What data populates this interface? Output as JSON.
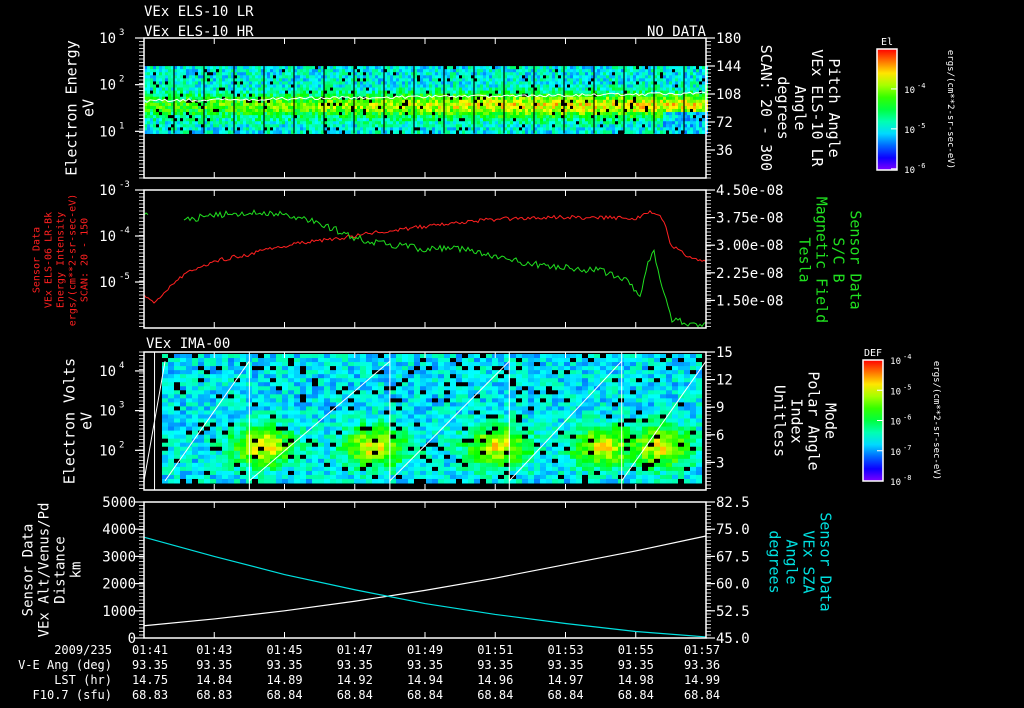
{
  "titles": {
    "top1": "VEx ELS-10 LR",
    "top2": "VEx ELS-10 HR",
    "no_data": "NO DATA",
    "ima": "VEx IMA-00"
  },
  "colors": {
    "red": "#ff2020",
    "green": "#20e020",
    "cyan": "#00e0e0",
    "white": "#ffffff"
  },
  "chart_data": [
    {
      "type": "heatmap",
      "title": "VEx ELS-10 LR / VEx ELS-10 HR",
      "ylabel": [
        "Electron Energy",
        "eV"
      ],
      "yscale": "log",
      "ylim": [
        1,
        1000
      ],
      "yticks": [
        "10^3",
        "10^2",
        "10^1"
      ],
      "y2label": [
        "Pitch Angle",
        "VEx ELS-10 LR",
        "Angle",
        "degrees",
        "SCAN: 20 - 300"
      ],
      "y2ticks": [
        "180",
        "144",
        "108",
        "72",
        "36"
      ],
      "y2lim": [
        0,
        180
      ],
      "colorbar": {
        "title": "El",
        "ticks": [
          "10^-4",
          "10^-5",
          "10^-6"
        ],
        "label": "ergs/(cm**2-sr-sec-eV)"
      },
      "band_eV": [
        10,
        250
      ],
      "peak_eV": 40
    },
    {
      "type": "line",
      "ylabel": [
        "Sensor Data",
        "VEx ELS-06 LR-Bk",
        "Energy Intensity",
        "ergs/(cm**2-sr-sec-eV)",
        "SCAN: 20 - 150"
      ],
      "yscale": "log",
      "ylim": [
        1e-06,
        0.001
      ],
      "yticks": [
        "10^-3",
        "10^-4",
        "10^-5"
      ],
      "y2label": [
        "Sensor Data",
        "S/C B",
        "Magnetic Field",
        "Tesla"
      ],
      "y2ticks": [
        "4.50e-08",
        "3.75e-08",
        "3.00e-08",
        "2.25e-08",
        "1.50e-08"
      ],
      "y2lim": [
        7.5e-09,
        4.5e-08
      ],
      "series": [
        {
          "name": "Energy Intensity",
          "axis": "left",
          "color": "red",
          "x": [
            0,
            0.3,
            0.6,
            1,
            1.5,
            2,
            3,
            4,
            5,
            6,
            7,
            8,
            9,
            10,
            11,
            12,
            13,
            14,
            14.5,
            14.7,
            15,
            15.5,
            16
          ],
          "y": [
            5e-06,
            3.5e-06,
            6e-06,
            1.2e-05,
            2e-05,
            2.8e-05,
            4e-05,
            6e-05,
            8e-05,
            0.0001,
            0.00013,
            0.00016,
            0.0002,
            0.00023,
            0.00025,
            0.00026,
            0.00025,
            0.00024,
            0.00035,
            0.00025,
            6e-05,
            3.5e-05,
            2.8e-05
          ]
        },
        {
          "name": "S/C B Magnetic Field",
          "axis": "right",
          "color": "green",
          "x": [
            0,
            0.1,
            1.1,
            2,
            3,
            4,
            5,
            6,
            7,
            8,
            9,
            10,
            11,
            12,
            13,
            13.8,
            14.1,
            14.5,
            14.7,
            15,
            15.5,
            16
          ],
          "y": [
            3.9e-08,
            3.85e-08,
            3.7e-08,
            3.8e-08,
            3.9e-08,
            3.85e-08,
            3.6e-08,
            3.2e-08,
            3e-08,
            2.9e-08,
            2.9e-08,
            2.7e-08,
            2.5e-08,
            2.4e-08,
            2.3e-08,
            2e-08,
            1.6e-08,
            3e-08,
            2e-08,
            1e-08,
            8.5e-09,
            8.5e-09
          ]
        }
      ]
    },
    {
      "type": "heatmap",
      "title": "VEx IMA-00",
      "ylabel": [
        "Electron Volts",
        "eV"
      ],
      "yscale": "log",
      "ylim": [
        10,
        30000
      ],
      "yticks": [
        "10^4",
        "10^3",
        "10^2"
      ],
      "y2label": [
        "Mode",
        "Polar Angle",
        "Index",
        "Unitless"
      ],
      "y2ticks": [
        "15",
        "12",
        "9",
        "6",
        "3"
      ],
      "y2lim": [
        0,
        15
      ],
      "colorbar": {
        "title": "DEF",
        "ticks": [
          "10^-4",
          "10^-5",
          "10^-6",
          "10^-7",
          "10^-8"
        ],
        "label": "ergs/(cm**2-sr-sec-eV)"
      }
    },
    {
      "type": "line",
      "ylabel": [
        "Sensor Data",
        "VEx Alt/Venus/Pd",
        "Distance",
        "km"
      ],
      "ylim": [
        0,
        5000
      ],
      "yticks": [
        "5000",
        "4000",
        "3000",
        "2000",
        "1000",
        "0"
      ],
      "y2label": [
        "Sensor Data",
        "VEx SZA",
        "Angle",
        "degrees"
      ],
      "y2lim": [
        45,
        82.5
      ],
      "y2ticks": [
        "82.5",
        "75.0",
        "67.5",
        "60.0",
        "52.5",
        "45.0"
      ],
      "series": [
        {
          "name": "Altitude",
          "axis": "left",
          "color": "white",
          "x": [
            0,
            2,
            4,
            6,
            8,
            10,
            12,
            14,
            16
          ],
          "y": [
            450,
            700,
            1000,
            1350,
            1750,
            2200,
            2700,
            3200,
            3750
          ]
        },
        {
          "name": "SZA",
          "axis": "right",
          "color": "cyan",
          "x": [
            0,
            2,
            4,
            6,
            8,
            10,
            12,
            14,
            16
          ],
          "y": [
            72.8,
            67.5,
            62.5,
            58.3,
            54.5,
            51.5,
            49.0,
            46.8,
            45.3
          ]
        }
      ]
    }
  ],
  "time_axis": {
    "row_labels": [
      "2009/235",
      "V-E Ang (deg)",
      "LST (hr)",
      "F10.7 (sfu)"
    ],
    "columns": [
      {
        "time": "01:41",
        "ve": "93.35",
        "lst": "14.75",
        "f107": "68.83"
      },
      {
        "time": "01:43",
        "ve": "93.35",
        "lst": "14.84",
        "f107": "68.83"
      },
      {
        "time": "01:45",
        "ve": "93.35",
        "lst": "14.89",
        "f107": "68.84"
      },
      {
        "time": "01:47",
        "ve": "93.35",
        "lst": "14.92",
        "f107": "68.84"
      },
      {
        "time": "01:49",
        "ve": "93.35",
        "lst": "14.94",
        "f107": "68.84"
      },
      {
        "time": "01:51",
        "ve": "93.35",
        "lst": "14.96",
        "f107": "68.84"
      },
      {
        "time": "01:53",
        "ve": "93.35",
        "lst": "14.97",
        "f107": "68.84"
      },
      {
        "time": "01:55",
        "ve": "93.35",
        "lst": "14.98",
        "f107": "68.84"
      },
      {
        "time": "01:57",
        "ve": "93.36",
        "lst": "14.99",
        "f107": "68.84"
      }
    ]
  }
}
